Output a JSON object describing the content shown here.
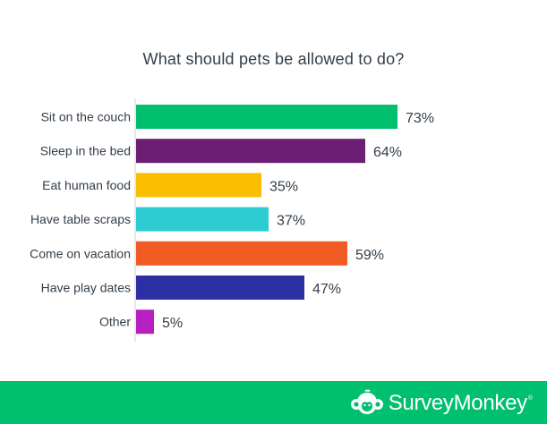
{
  "chart_data": {
    "type": "bar",
    "orientation": "horizontal",
    "title": "What should pets be allowed to do?",
    "categories": [
      "Sit on the couch",
      "Sleep in the bed",
      "Eat human food",
      "Have table scraps",
      "Come on vacation",
      "Have play dates",
      "Other"
    ],
    "values": [
      73,
      64,
      35,
      37,
      59,
      47,
      5
    ],
    "value_labels": [
      "73%",
      "64%",
      "35%",
      "37%",
      "59%",
      "47%",
      "5%"
    ],
    "colors": [
      "#00bf6f",
      "#6b1f73",
      "#f9be00",
      "#2dccd3",
      "#f05b24",
      "#2c2ea3",
      "#b61fc0"
    ],
    "xlim": [
      0,
      100
    ],
    "xlabel": "",
    "ylabel": "",
    "grid": false,
    "legend": "none"
  },
  "footer": {
    "brand_name": "SurveyMonkey",
    "brand_mark": "®",
    "background": "#00bf6f",
    "logo_icon": "surveymonkey-logo-icon"
  },
  "colors": {
    "axis": "#d0d0d0",
    "text": "#333e48"
  }
}
